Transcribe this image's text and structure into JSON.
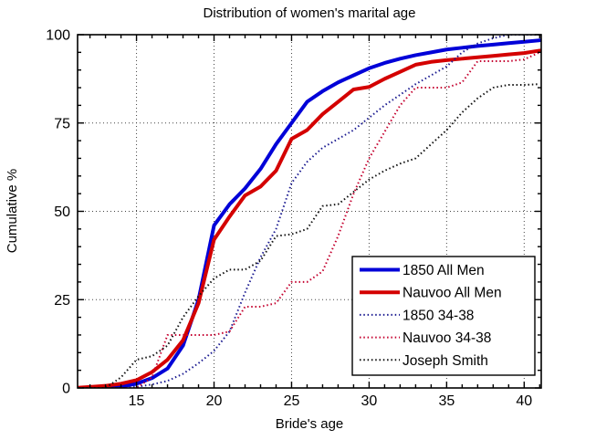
{
  "chart_data": {
    "type": "line",
    "title": "Distribution of women's marital age",
    "xlabel": "Bride's age",
    "ylabel": "Cumulative %",
    "xlim": [
      11.2,
      41.1
    ],
    "ylim": [
      0,
      100
    ],
    "x_major_ticks": [
      15,
      20,
      25,
      30,
      35,
      40
    ],
    "x_minor_step": 1,
    "y_major_ticks": [
      0,
      25,
      50,
      75,
      100
    ],
    "y_minor_step": 5,
    "grid": "dotted black at major ticks, box on, inward minor ticks on all sides",
    "legend_position": "inside lower right",
    "x": [
      11,
      12,
      13,
      14,
      15,
      16,
      17,
      18,
      19,
      20,
      21,
      22,
      23,
      24,
      25,
      26,
      27,
      28,
      29,
      30,
      31,
      32,
      33,
      34,
      35,
      36,
      37,
      38,
      39,
      40,
      41
    ],
    "series": [
      {
        "name": "1850 All Men",
        "style": "solid",
        "color": "#0000d8",
        "width": 4,
        "values": [
          0,
          0,
          0.2,
          0.4,
          1.2,
          2.8,
          5.5,
          12,
          25,
          46,
          52,
          56.5,
          62,
          69,
          75,
          81,
          84,
          86.5,
          88.5,
          90.5,
          92,
          93.2,
          94.2,
          95,
          95.8,
          96.3,
          96.8,
          97.2,
          97.6,
          98,
          98.4
        ]
      },
      {
        "name": "Nauvoo All Men",
        "style": "solid",
        "color": "#d40000",
        "width": 4,
        "values": [
          0,
          0.3,
          0.6,
          1.2,
          2.2,
          4.5,
          8,
          13.5,
          24,
          42,
          48.5,
          54.5,
          57,
          61.5,
          70.5,
          73,
          77.5,
          81,
          84.5,
          85.2,
          87.5,
          89.5,
          91.5,
          92.3,
          92.8,
          93.2,
          93.6,
          94,
          94.4,
          94.8,
          95.5
        ]
      },
      {
        "name": "1850 34-38",
        "style": "dotted",
        "color": "#1a1a90",
        "width": 2,
        "values": [
          0,
          0,
          0,
          0,
          0.3,
          1,
          2,
          4,
          7,
          10.5,
          16,
          27,
          37,
          45,
          58,
          64,
          68,
          70.5,
          73,
          76.5,
          80,
          83,
          86,
          88.5,
          91,
          95,
          97.5,
          99,
          100,
          100,
          100
        ]
      },
      {
        "name": "Nauvoo 34-38",
        "style": "dotted",
        "color": "#c4002e",
        "width": 2,
        "values": [
          0,
          0,
          0,
          0,
          0,
          3,
          15,
          15,
          15,
          15,
          16,
          23,
          23,
          24,
          30,
          30,
          33,
          43,
          55,
          65,
          72.5,
          80,
          85,
          85,
          85,
          86.5,
          92.5,
          92.5,
          92.5,
          93,
          95
        ]
      },
      {
        "name": "Joseph Smith",
        "style": "dotted",
        "color": "#101010",
        "width": 2,
        "values": [
          0,
          0,
          0,
          3,
          8,
          9,
          12,
          20,
          26,
          31,
          33.5,
          33.5,
          36,
          43,
          43.5,
          45,
          51.5,
          52,
          55.5,
          59,
          61.5,
          63.5,
          65,
          69,
          73,
          78,
          82,
          85,
          85.8,
          85.8,
          86
        ]
      }
    ]
  }
}
